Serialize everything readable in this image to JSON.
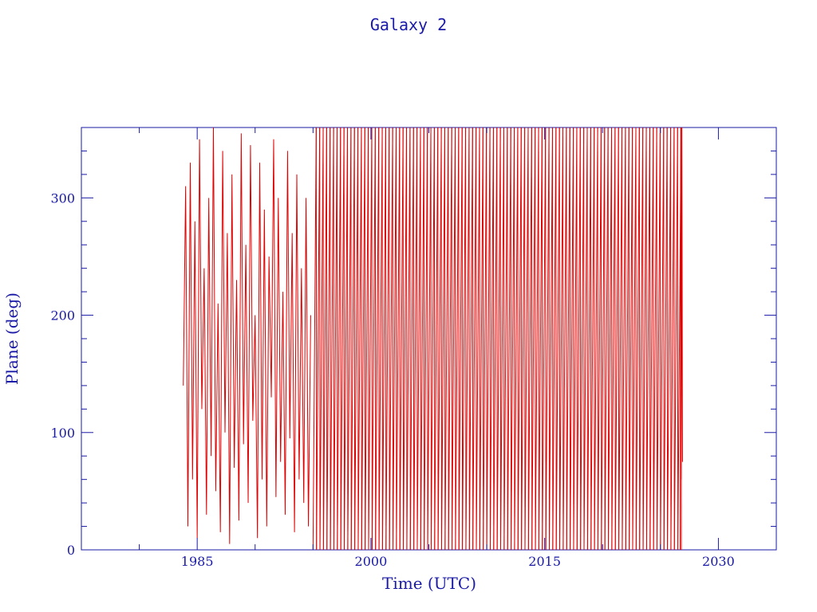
{
  "chart_data": {
    "type": "line",
    "title": "Galaxy 2",
    "xlabel": "Time (UTC)",
    "ylabel": "Plane (deg)",
    "xlim": [
      1975,
      2035
    ],
    "ylim": [
      0,
      360
    ],
    "x_ticks": [
      1985,
      2000,
      2015,
      2030
    ],
    "y_ticks": [
      0,
      100,
      200,
      300
    ],
    "grid": false,
    "colors": {
      "axis": "#1a1aa6",
      "series": "#e00000"
    },
    "series": [
      {
        "segments": [
          {
            "x": [
              1983.8,
              1984.0,
              1984.2,
              1984.4,
              1984.6,
              1984.8,
              1985.0,
              1985.2,
              1985.4,
              1985.6,
              1985.8,
              1986.0,
              1986.2,
              1986.4,
              1986.6,
              1986.8,
              1987.0,
              1987.2,
              1987.4,
              1987.6,
              1987.8,
              1988.0,
              1988.2,
              1988.4,
              1988.6,
              1988.8,
              1989.0,
              1989.2,
              1989.4,
              1989.6,
              1989.8,
              1990.0,
              1990.2,
              1990.4,
              1990.6,
              1990.8,
              1991.0,
              1991.2,
              1991.4,
              1991.6,
              1991.8,
              1992.0,
              1992.2,
              1992.4,
              1992.6,
              1992.8,
              1993.0,
              1993.2,
              1993.4,
              1993.6,
              1993.8,
              1994.0,
              1994.2,
              1994.4,
              1994.6,
              1994.8
            ],
            "y": [
              140,
              310,
              20,
              330,
              60,
              280,
              10,
              350,
              120,
              240,
              30,
              300,
              80,
              360,
              50,
              210,
              15,
              340,
              100,
              270,
              5,
              320,
              70,
              230,
              25,
              355,
              90,
              260,
              40,
              345,
              110,
              200,
              10,
              330,
              60,
              290,
              20,
              250,
              130,
              350,
              45,
              300,
              75,
              220,
              30,
              340,
              95,
              270,
              15,
              320,
              60,
              240,
              40,
              300,
              20,
              200
            ]
          }
        ],
        "sawtooth": {
          "start": 1995.0,
          "end": 2026.6,
          "period": 0.3,
          "y_start": 0,
          "y_end": 360
        },
        "end_segment": {
          "x": [
            2026.7,
            2026.75,
            2026.8,
            2026.85,
            2026.9
          ],
          "y": [
            0,
            360,
            60,
            360,
            75
          ]
        }
      }
    ]
  }
}
